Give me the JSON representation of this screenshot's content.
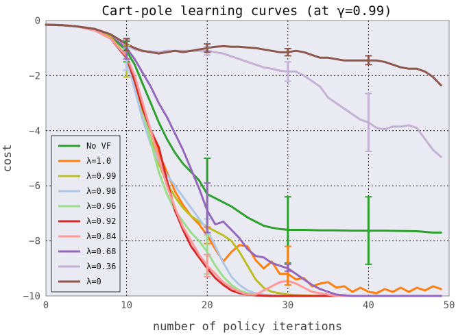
{
  "chart_data": {
    "type": "line",
    "title": "Cart-pole learning curves (at γ=0.99)",
    "xlabel": "number of policy iterations",
    "ylabel": "cost",
    "xlim": [
      0,
      50
    ],
    "ylim": [
      -10,
      0
    ],
    "x_ticks": [
      "0",
      "10",
      "20",
      "30",
      "40",
      "50"
    ],
    "y_ticks": [
      "0",
      "−2",
      "−4",
      "−6",
      "−8",
      "−10"
    ],
    "grid": true,
    "legend_position": "lower-left",
    "colors": {
      "plot_background": "#eaeaf2",
      "grid_line": "#222222",
      "axis_frame": "#888888"
    },
    "series": [
      {
        "name": "No VF",
        "color": "#2ca02c",
        "x": [
          0,
          2,
          4,
          6,
          8,
          10,
          11,
          12,
          13,
          14,
          15,
          16,
          17,
          18,
          19,
          20,
          21,
          22,
          23,
          24,
          25,
          26,
          27,
          28,
          29,
          30,
          32,
          34,
          36,
          38,
          40,
          42,
          44,
          46,
          48,
          49
        ],
        "y": [
          -0.15,
          -0.17,
          -0.22,
          -0.3,
          -0.55,
          -1.1,
          -1.6,
          -2.3,
          -3.0,
          -3.7,
          -4.3,
          -4.8,
          -5.2,
          -5.5,
          -5.8,
          -6.3,
          -6.45,
          -6.6,
          -6.75,
          -6.95,
          -7.15,
          -7.3,
          -7.45,
          -7.52,
          -7.57,
          -7.6,
          -7.6,
          -7.62,
          -7.62,
          -7.63,
          -7.63,
          -7.63,
          -7.64,
          -7.65,
          -7.7,
          -7.7
        ],
        "errorbars": [
          {
            "x": 10,
            "y": -1.1,
            "lower": -1.5,
            "upper": -0.75
          },
          {
            "x": 20,
            "y": -6.3,
            "lower": -7.5,
            "upper": -5.0
          },
          {
            "x": 30,
            "y": -7.6,
            "lower": -8.8,
            "upper": -6.4
          },
          {
            "x": 40,
            "y": -7.63,
            "lower": -8.85,
            "upper": -6.4
          }
        ]
      },
      {
        "name": "λ=1.0",
        "color": "#ff7f0e",
        "x": [
          0,
          2,
          4,
          6,
          8,
          10,
          11,
          12,
          13,
          14,
          15,
          16,
          17,
          18,
          19,
          20,
          21,
          22,
          23,
          24,
          25,
          26,
          27,
          28,
          29,
          30,
          31,
          32,
          33,
          34,
          35,
          36,
          37,
          38,
          39,
          40,
          41,
          42,
          43,
          44,
          45,
          46,
          47,
          48,
          49
        ],
        "y": [
          -0.15,
          -0.17,
          -0.22,
          -0.3,
          -0.6,
          -1.3,
          -2.1,
          -3.1,
          -4.0,
          -4.8,
          -5.5,
          -6.2,
          -6.7,
          -7.1,
          -7.4,
          -7.8,
          -8.3,
          -8.75,
          -8.4,
          -8.15,
          -8.2,
          -8.7,
          -9.0,
          -8.75,
          -9.2,
          -9.2,
          -9.4,
          -9.35,
          -9.65,
          -9.55,
          -9.5,
          -9.7,
          -9.65,
          -9.85,
          -9.7,
          -9.85,
          -9.9,
          -9.75,
          -9.85,
          -9.7,
          -9.85,
          -9.7,
          -9.8,
          -9.65,
          -9.75
        ],
        "errorbars": [
          {
            "x": 20,
            "y": -7.8,
            "lower": -8.1,
            "upper": -7.5
          },
          {
            "x": 30,
            "y": -9.2,
            "lower": -9.6,
            "upper": -8.2
          }
        ]
      },
      {
        "name": "λ=0.99",
        "color": "#bcbd22",
        "x": [
          0,
          2,
          4,
          6,
          8,
          10,
          11,
          12,
          13,
          14,
          15,
          16,
          17,
          18,
          19,
          20,
          21,
          22,
          23,
          24,
          25,
          26,
          27,
          28,
          29,
          30,
          32,
          34,
          36,
          38,
          40,
          45,
          49
        ],
        "y": [
          -0.15,
          -0.17,
          -0.22,
          -0.3,
          -0.6,
          -1.3,
          -2.2,
          -3.3,
          -4.3,
          -5.2,
          -5.9,
          -6.4,
          -6.8,
          -7.1,
          -7.3,
          -7.5,
          -7.65,
          -7.8,
          -8.0,
          -8.4,
          -8.9,
          -9.4,
          -9.7,
          -9.85,
          -9.9,
          -9.95,
          -9.98,
          -10,
          -10,
          -10,
          -10,
          -10,
          -10
        ],
        "errorbars": [
          {
            "x": 10,
            "y": -1.3,
            "lower": -2.05,
            "upper": -0.9
          }
        ]
      },
      {
        "name": "λ=0.98",
        "color": "#aec7e8",
        "x": [
          0,
          2,
          4,
          6,
          8,
          10,
          11,
          12,
          13,
          14,
          15,
          16,
          17,
          18,
          19,
          20,
          21,
          22,
          23,
          24,
          25,
          26,
          27,
          28,
          30,
          32,
          35,
          40,
          45,
          49
        ],
        "y": [
          -0.15,
          -0.17,
          -0.22,
          -0.35,
          -0.65,
          -1.4,
          -2.5,
          -3.6,
          -4.5,
          -5.1,
          -5.6,
          -6.0,
          -6.4,
          -6.8,
          -7.2,
          -7.6,
          -8.2,
          -8.8,
          -9.3,
          -9.6,
          -9.8,
          -9.9,
          -9.95,
          -9.98,
          -10,
          -10,
          -10,
          -10,
          -10,
          -10
        ],
        "errorbars": [
          {
            "x": 10,
            "y": -1.4,
            "lower": -1.8,
            "upper": -1.0
          },
          {
            "x": 20,
            "y": -7.6,
            "lower": -8.5,
            "upper": -7.2
          }
        ]
      },
      {
        "name": "λ=0.96",
        "color": "#98df8a",
        "x": [
          0,
          2,
          4,
          6,
          8,
          10,
          11,
          12,
          13,
          14,
          15,
          16,
          17,
          18,
          19,
          20,
          21,
          22,
          23,
          24,
          25,
          26,
          27,
          28,
          30,
          32,
          35,
          40,
          45,
          49
        ],
        "y": [
          -0.15,
          -0.17,
          -0.22,
          -0.35,
          -0.65,
          -1.35,
          -2.2,
          -3.2,
          -4.4,
          -5.5,
          -6.3,
          -6.9,
          -7.3,
          -7.7,
          -8.0,
          -8.4,
          -8.9,
          -9.3,
          -9.6,
          -9.8,
          -9.9,
          -9.95,
          -9.98,
          -10,
          -10,
          -10,
          -10,
          -10,
          -10,
          -10
        ],
        "errorbars": [
          {
            "x": 20,
            "y": -8.4,
            "lower": -9.2,
            "upper": -7.8
          }
        ]
      },
      {
        "name": "λ=0.92",
        "color": "#d62728",
        "x": [
          0,
          2,
          4,
          6,
          8,
          10,
          11,
          12,
          13,
          14,
          15,
          16,
          17,
          18,
          19,
          20,
          21,
          22,
          23,
          24,
          25,
          26,
          28,
          30,
          35,
          40,
          45,
          49
        ],
        "y": [
          -0.15,
          -0.17,
          -0.22,
          -0.35,
          -0.65,
          -1.35,
          -2.2,
          -3.2,
          -4.0,
          -4.6,
          -5.8,
          -6.9,
          -7.6,
          -8.2,
          -8.6,
          -9.0,
          -9.35,
          -9.6,
          -9.8,
          -9.9,
          -9.95,
          -9.98,
          -10,
          -10,
          -10,
          -10,
          -10,
          -10
        ],
        "errorbars": []
      },
      {
        "name": "λ=0.84",
        "color": "#ff9896",
        "x": [
          0,
          2,
          4,
          6,
          8,
          10,
          11,
          12,
          13,
          14,
          15,
          16,
          17,
          18,
          19,
          20,
          21,
          22,
          23,
          24,
          25,
          26,
          27,
          28,
          29,
          30,
          31,
          32,
          33,
          34,
          35,
          36,
          38,
          40,
          45,
          49
        ],
        "y": [
          -0.15,
          -0.17,
          -0.22,
          -0.35,
          -0.65,
          -1.3,
          -2.0,
          -3.0,
          -4.0,
          -5.0,
          -6.0,
          -6.8,
          -7.5,
          -8.0,
          -8.5,
          -8.9,
          -9.2,
          -9.5,
          -9.7,
          -9.85,
          -9.95,
          -9.95,
          -9.8,
          -9.65,
          -9.5,
          -9.45,
          -9.55,
          -9.7,
          -9.85,
          -9.9,
          -9.95,
          -10,
          -10,
          -10,
          -10,
          -10
        ],
        "errorbars": [
          {
            "x": 20,
            "y": -8.9,
            "lower": -9.3,
            "upper": -8.5
          }
        ]
      },
      {
        "name": "λ=0.68",
        "color": "#9467bd",
        "x": [
          0,
          2,
          4,
          6,
          8,
          10,
          11,
          12,
          13,
          14,
          15,
          16,
          17,
          18,
          19,
          20,
          21,
          22,
          23,
          24,
          25,
          26,
          27,
          28,
          29,
          30,
          31,
          32,
          33,
          34,
          35,
          36,
          38,
          40,
          45,
          49
        ],
        "y": [
          -0.15,
          -0.17,
          -0.22,
          -0.3,
          -0.5,
          -1.0,
          -1.4,
          -1.9,
          -2.4,
          -3.0,
          -3.5,
          -4.1,
          -4.7,
          -5.4,
          -6.1,
          -6.9,
          -7.4,
          -7.3,
          -7.6,
          -7.9,
          -8.3,
          -8.55,
          -8.6,
          -8.8,
          -8.9,
          -9.0,
          -9.2,
          -9.4,
          -9.6,
          -9.75,
          -9.85,
          -9.95,
          -10,
          -10,
          -10,
          -10
        ],
        "errorbars": [
          {
            "x": 10,
            "y": -1.0,
            "lower": -1.4,
            "upper": -0.7
          },
          {
            "x": 20,
            "y": -6.9,
            "lower": -7.7,
            "upper": -5.9
          },
          {
            "x": 30,
            "y": -9.0,
            "lower": -9.1,
            "upper": -8.85
          }
        ]
      },
      {
        "name": "λ=0.36",
        "color": "#c5b0d5",
        "x": [
          0,
          2,
          4,
          6,
          8,
          10,
          11,
          12,
          13,
          14,
          15,
          16,
          17,
          18,
          19,
          20,
          21,
          22,
          23,
          24,
          25,
          26,
          27,
          28,
          29,
          30,
          31,
          32,
          33,
          34,
          35,
          36,
          37,
          38,
          39,
          40,
          41,
          42,
          43,
          44,
          45,
          46,
          47,
          48,
          49
        ],
        "y": [
          -0.15,
          -0.17,
          -0.22,
          -0.3,
          -0.5,
          -0.9,
          -1.05,
          -1.12,
          -1.12,
          -1.15,
          -1.1,
          -1.1,
          -1.1,
          -1.1,
          -1.1,
          -1.1,
          -1.15,
          -1.2,
          -1.3,
          -1.4,
          -1.5,
          -1.6,
          -1.7,
          -1.75,
          -1.82,
          -1.85,
          -1.85,
          -2.0,
          -2.2,
          -2.4,
          -2.8,
          -3.0,
          -3.2,
          -3.4,
          -3.6,
          -3.7,
          -3.9,
          -3.95,
          -3.85,
          -3.85,
          -3.8,
          -3.9,
          -4.3,
          -4.7,
          -4.95
        ],
        "errorbars": [
          {
            "x": 10,
            "y": -0.9,
            "lower": -1.1,
            "upper": -0.7
          },
          {
            "x": 20,
            "y": -1.1,
            "lower": -1.25,
            "upper": -0.95
          },
          {
            "x": 30,
            "y": -1.85,
            "lower": -2.2,
            "upper": -1.5
          },
          {
            "x": 40,
            "y": -3.7,
            "lower": -4.75,
            "upper": -2.65
          }
        ]
      },
      {
        "name": "λ=0",
        "color": "#8c564b",
        "x": [
          0,
          2,
          4,
          6,
          8,
          10,
          11,
          12,
          13,
          14,
          15,
          16,
          17,
          18,
          19,
          20,
          21,
          22,
          23,
          24,
          25,
          26,
          27,
          28,
          29,
          30,
          31,
          32,
          33,
          34,
          35,
          36,
          37,
          38,
          39,
          40,
          41,
          42,
          43,
          44,
          45,
          46,
          47,
          48,
          49
        ],
        "y": [
          -0.15,
          -0.17,
          -0.22,
          -0.3,
          -0.5,
          -0.85,
          -1.0,
          -1.1,
          -1.15,
          -1.2,
          -1.15,
          -1.1,
          -1.15,
          -1.1,
          -1.05,
          -1.0,
          -0.95,
          -0.93,
          -0.95,
          -0.95,
          -0.98,
          -1.0,
          -1.05,
          -1.1,
          -1.15,
          -1.15,
          -1.1,
          -1.15,
          -1.25,
          -1.35,
          -1.35,
          -1.4,
          -1.45,
          -1.45,
          -1.45,
          -1.45,
          -1.45,
          -1.5,
          -1.6,
          -1.7,
          -1.75,
          -1.75,
          -1.85,
          -2.05,
          -2.35
        ],
        "errorbars": [
          {
            "x": 10,
            "y": -0.85,
            "lower": -1.1,
            "upper": -0.65
          },
          {
            "x": 20,
            "y": -1.0,
            "lower": -1.15,
            "upper": -0.85
          },
          {
            "x": 30,
            "y": -1.15,
            "lower": -1.28,
            "upper": -1.02
          },
          {
            "x": 40,
            "y": -1.45,
            "lower": -1.6,
            "upper": -1.28
          }
        ]
      }
    ]
  }
}
